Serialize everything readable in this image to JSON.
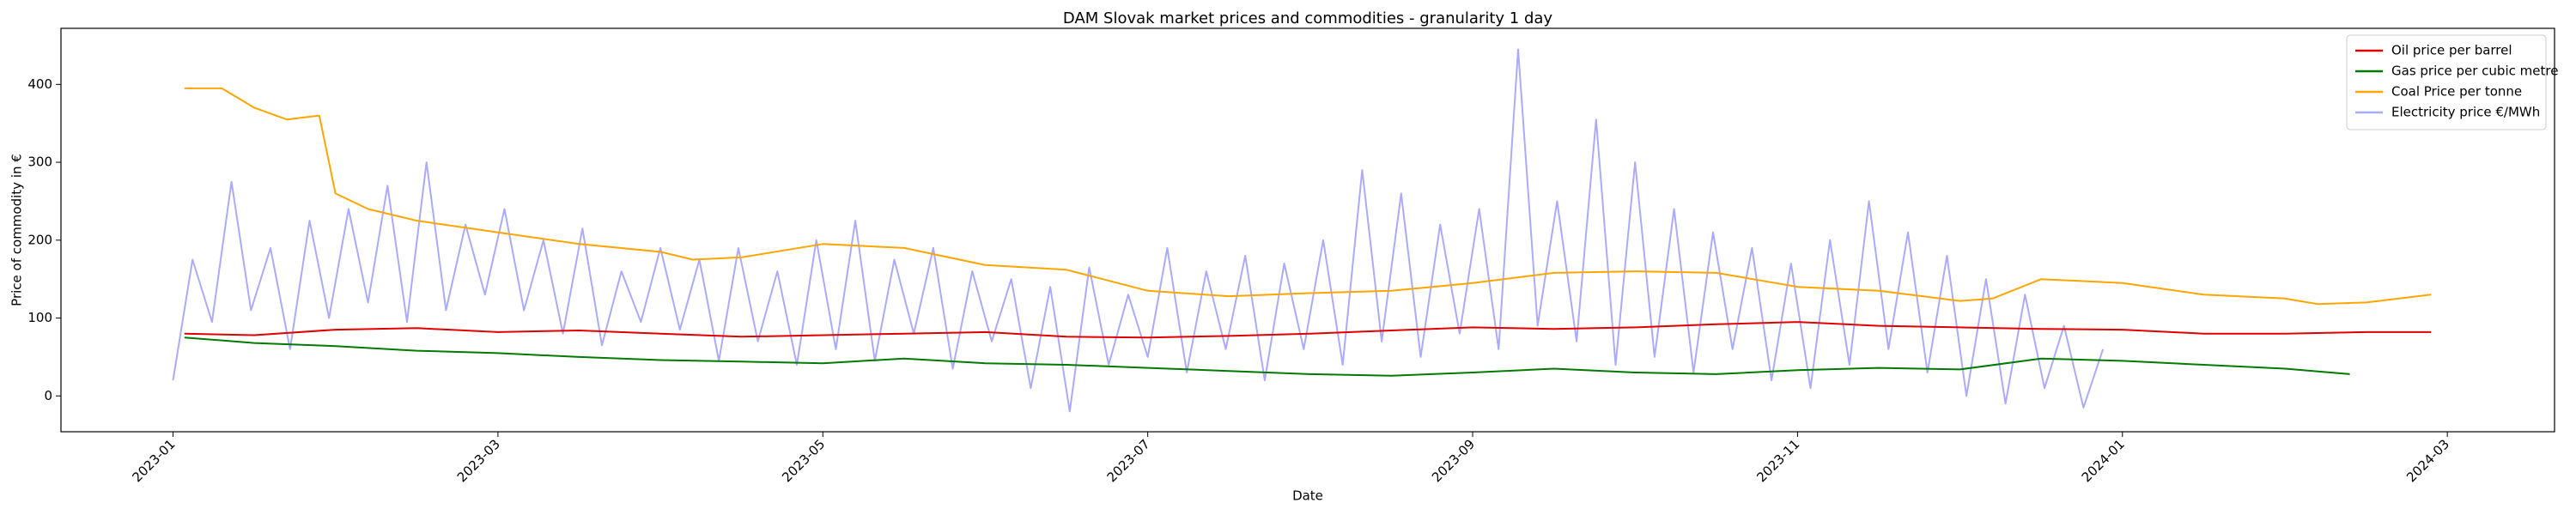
{
  "chart_data": {
    "type": "line",
    "title": "DAM Slovak market prices and commodities - granularity 1 day",
    "x_label": "Date",
    "y_label": "Price of commodity in €",
    "xlim": [
      -0.69,
      14.66
    ],
    "xticks": [
      {
        "value": 0,
        "label": "2023-01"
      },
      {
        "value": 2,
        "label": "2023-03"
      },
      {
        "value": 4,
        "label": "2023-05"
      },
      {
        "value": 6,
        "label": "2023-07"
      },
      {
        "value": 8,
        "label": "2023-09"
      },
      {
        "value": 10,
        "label": "2023-11"
      },
      {
        "value": 12,
        "label": "2024-01"
      },
      {
        "value": 14,
        "label": "2024-03"
      }
    ],
    "ylim": [
      -46,
      472
    ],
    "yticks": [
      0,
      100,
      200,
      300,
      400
    ],
    "grid": false,
    "legend": "upper right",
    "series": [
      {
        "name": "Oil price per barrel",
        "color": "#e00000",
        "x": [
          0.07,
          0.5,
          1,
          1.5,
          2,
          2.5,
          3,
          3.5,
          4,
          4.5,
          5,
          5.5,
          6,
          6.5,
          7,
          7.5,
          8,
          8.5,
          9,
          9.5,
          10,
          10.5,
          11,
          11.5,
          12,
          12.5,
          13,
          13.5,
          13.9
        ],
        "values": [
          80,
          78,
          85,
          87,
          82,
          84,
          80,
          76,
          78,
          80,
          82,
          76,
          75,
          77,
          80,
          84,
          88,
          86,
          88,
          92,
          95,
          90,
          88,
          86,
          85,
          80,
          80,
          82,
          82
        ]
      },
      {
        "name": "Gas price per cubic metre",
        "color": "#007a00",
        "x": [
          0.07,
          0.5,
          1,
          1.5,
          2,
          2.5,
          3,
          3.5,
          4,
          4.5,
          5,
          5.5,
          6,
          6.5,
          7,
          7.5,
          8,
          8.5,
          9,
          9.5,
          10,
          10.5,
          11,
          11.5,
          12,
          12.5,
          13,
          13.4
        ],
        "values": [
          75,
          68,
          64,
          58,
          55,
          50,
          46,
          44,
          42,
          48,
          42,
          40,
          36,
          32,
          28,
          26,
          30,
          35,
          30,
          28,
          33,
          36,
          34,
          48,
          45,
          40,
          35,
          28
        ]
      },
      {
        "name": "Coal Price per tonne",
        "color": "#ffa500",
        "x": [
          0.07,
          0.3,
          0.5,
          0.7,
          0.9,
          1,
          1.2,
          1.5,
          2,
          2.5,
          3,
          3.2,
          3.5,
          4,
          4.5,
          5,
          5.5,
          6,
          6.5,
          7,
          7.5,
          8,
          8.5,
          9,
          9.5,
          10,
          10.5,
          11,
          11.2,
          11.5,
          12,
          12.5,
          13,
          13.2,
          13.5,
          13.9
        ],
        "values": [
          395,
          395,
          370,
          355,
          360,
          260,
          240,
          225,
          210,
          195,
          185,
          175,
          178,
          195,
          190,
          168,
          162,
          135,
          128,
          132,
          135,
          145,
          158,
          160,
          158,
          140,
          135,
          122,
          125,
          150,
          145,
          130,
          125,
          118,
          120,
          130
        ]
      },
      {
        "name": "Electricity price €/MWh",
        "color": "#aaaaff",
        "x": [
          0,
          0.12,
          0.24,
          0.36,
          0.48,
          0.6,
          0.72,
          0.84,
          0.96,
          1.08,
          1.2,
          1.32,
          1.44,
          1.56,
          1.68,
          1.8,
          1.92,
          2.04,
          2.16,
          2.28,
          2.4,
          2.52,
          2.64,
          2.76,
          2.88,
          3,
          3.12,
          3.24,
          3.36,
          3.48,
          3.6,
          3.72,
          3.84,
          3.96,
          4.08,
          4.2,
          4.32,
          4.44,
          4.56,
          4.68,
          4.8,
          4.92,
          5.04,
          5.16,
          5.28,
          5.4,
          5.52,
          5.64,
          5.76,
          5.88,
          6,
          6.12,
          6.24,
          6.36,
          6.48,
          6.6,
          6.72,
          6.84,
          6.96,
          7.08,
          7.2,
          7.32,
          7.44,
          7.56,
          7.68,
          7.8,
          7.92,
          8.04,
          8.16,
          8.28,
          8.4,
          8.52,
          8.64,
          8.76,
          8.88,
          9,
          9.12,
          9.24,
          9.36,
          9.48,
          9.6,
          9.72,
          9.84,
          9.96,
          10.08,
          10.2,
          10.32,
          10.44,
          10.56,
          10.68,
          10.8,
          10.92,
          11.04,
          11.16,
          11.28,
          11.4,
          11.52,
          11.64,
          11.76,
          11.88
        ],
        "values": [
          20,
          175,
          95,
          275,
          110,
          190,
          60,
          225,
          100,
          240,
          120,
          270,
          95,
          300,
          110,
          220,
          130,
          240,
          110,
          200,
          80,
          215,
          65,
          160,
          95,
          190,
          85,
          175,
          45,
          190,
          70,
          160,
          40,
          200,
          60,
          225,
          45,
          175,
          80,
          190,
          35,
          160,
          70,
          150,
          10,
          140,
          -20,
          165,
          40,
          130,
          50,
          190,
          30,
          160,
          60,
          180,
          20,
          170,
          60,
          200,
          40,
          290,
          70,
          260,
          50,
          220,
          80,
          240,
          60,
          445,
          90,
          250,
          70,
          355,
          40,
          300,
          50,
          240,
          30,
          210,
          60,
          190,
          20,
          170,
          10,
          200,
          40,
          250,
          60,
          210,
          30,
          180,
          0,
          150,
          -10,
          130,
          10,
          90,
          -15,
          60
        ]
      }
    ]
  }
}
